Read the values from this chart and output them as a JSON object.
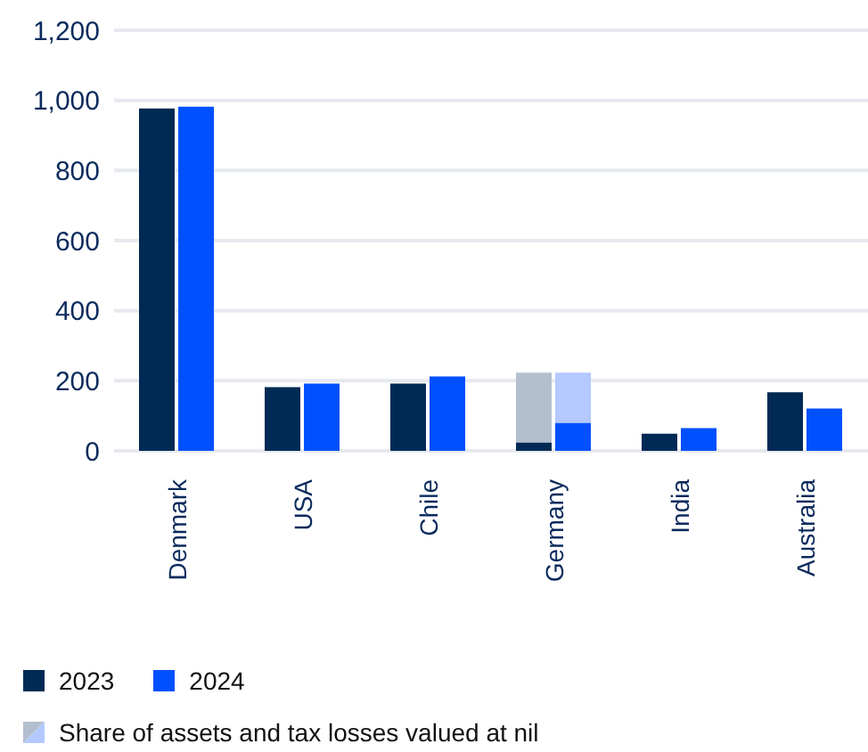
{
  "chart_data": {
    "type": "bar",
    "categories": [
      "Denmark",
      "USA",
      "Chile",
      "Germany",
      "India",
      "Australia"
    ],
    "series": [
      {
        "name": "2023",
        "color": "#002a54",
        "values": [
          977,
          182,
          192,
          24,
          49,
          167
        ]
      },
      {
        "name": "Share of assets and tax losses valued at nil",
        "color": "#b3bfcf",
        "values": [
          null,
          null,
          null,
          199,
          null,
          null
        ],
        "base": [
          null,
          null,
          null,
          24,
          null,
          null
        ]
      },
      {
        "name": "2024",
        "color": "#0050ff",
        "values": [
          982,
          192,
          212,
          80,
          65,
          121
        ]
      },
      {
        "color": "#b3c9ff",
        "values": [
          null,
          null,
          null,
          143,
          null,
          null
        ],
        "base": [
          null,
          null,
          null,
          80,
          null,
          null
        ]
      }
    ],
    "ylim": [
      0,
      1200
    ],
    "yticks": [
      0,
      {
        "value": 200,
        "label": "200"
      },
      {
        "value": 400,
        "label": "400"
      },
      {
        "value": 600,
        "label": "600"
      },
      {
        "value": 800,
        "label": "800"
      },
      {
        "value": 1000,
        "label": "1,000"
      },
      {
        "value": 1200,
        "label": "1,200"
      }
    ],
    "grid": "y",
    "legend": "bottom"
  }
}
